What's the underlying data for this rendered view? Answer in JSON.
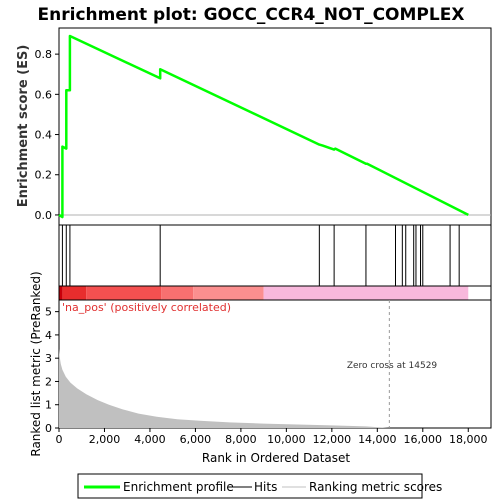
{
  "chart_data": {
    "type": "line",
    "title": "Enrichment plot: GOCC_CCR4_NOT_COMPLEX",
    "xlabel": "Rank in Ordered Dataset",
    "xlim": [
      0,
      19000
    ],
    "x_ticks": [
      "0",
      "2,000",
      "4,000",
      "6,000",
      "8,000",
      "10,000",
      "12,000",
      "14,000",
      "16,000",
      "18,000"
    ],
    "x_tick_values": [
      0,
      2000,
      4000,
      6000,
      8000,
      10000,
      12000,
      14000,
      16000,
      18000
    ],
    "es_panel": {
      "ylabel": "Enrichment score (ES)",
      "ylim": [
        -0.05,
        0.93
      ],
      "y_ticks": [
        "0.0",
        "0.2",
        "0.4",
        "0.6",
        "0.8"
      ],
      "y_tick_values": [
        0.0,
        0.2,
        0.4,
        0.6,
        0.8
      ],
      "series": [
        {
          "name": "Enrichment profile",
          "color": "#00ff00",
          "x": [
            0,
            150,
            151,
            320,
            321,
            480,
            481,
            4450,
            4451,
            11450,
            11600,
            12100,
            12150,
            13500,
            13550,
            18000
          ],
          "y": [
            0.0,
            -0.01,
            0.34,
            0.33,
            0.62,
            0.62,
            0.89,
            0.68,
            0.725,
            0.35,
            0.345,
            0.325,
            0.33,
            0.255,
            0.255,
            0.0
          ]
        }
      ]
    },
    "hits_panel": {
      "label": "Hits",
      "hit_ranks": [
        150,
        320,
        480,
        4450,
        11450,
        12100,
        13500,
        14800,
        15100,
        15250,
        15600,
        15700,
        15900,
        16000,
        17200,
        17600
      ]
    },
    "color_bar": {
      "segments": [
        {
          "from": 0,
          "to": 150,
          "color": "#c8000a"
        },
        {
          "from": 150,
          "to": 1200,
          "color": "#e82d2d"
        },
        {
          "from": 1200,
          "to": 4500,
          "color": "#f45050"
        },
        {
          "from": 4500,
          "to": 5900,
          "color": "#f87070"
        },
        {
          "from": 5900,
          "to": 9000,
          "color": "#fb8f8f"
        },
        {
          "from": 9000,
          "to": 18000,
          "color": "#f8b8dc"
        }
      ]
    },
    "metric_panel": {
      "ylabel": "Ranked list metric (PreRanked)",
      "ylim": [
        0,
        5.5
      ],
      "y_ticks": [
        "0",
        "1",
        "2",
        "3",
        "4",
        "5"
      ],
      "y_tick_values": [
        0,
        1,
        2,
        3,
        4,
        5
      ],
      "positive_label": "'na_pos' (positively correlated)",
      "zero_cross_label": "Zero cross at 14529",
      "zero_cross": 14529,
      "series": [
        {
          "name": "Ranking metric scores",
          "color": "#c0c0c0",
          "x": [
            0,
            30,
            80,
            150,
            300,
            500,
            800,
            1200,
            1700,
            2200,
            2800,
            3500,
            4300,
            5200,
            6200,
            7500,
            9000,
            10500,
            12000,
            13500,
            14529,
            16000,
            18000
          ],
          "y": [
            3.4,
            3.05,
            2.75,
            2.5,
            2.2,
            1.95,
            1.7,
            1.45,
            1.2,
            1.0,
            0.8,
            0.62,
            0.48,
            0.38,
            0.31,
            0.24,
            0.19,
            0.15,
            0.11,
            0.07,
            0.0,
            0.0,
            0.0
          ]
        }
      ]
    },
    "legend": {
      "position": "bottom",
      "items": [
        {
          "label": "Enrichment profile",
          "color": "#00ff00"
        },
        {
          "label": "Hits",
          "color": "#000000"
        },
        {
          "label": "Ranking metric scores",
          "color": "#c0c0c0"
        }
      ]
    }
  }
}
